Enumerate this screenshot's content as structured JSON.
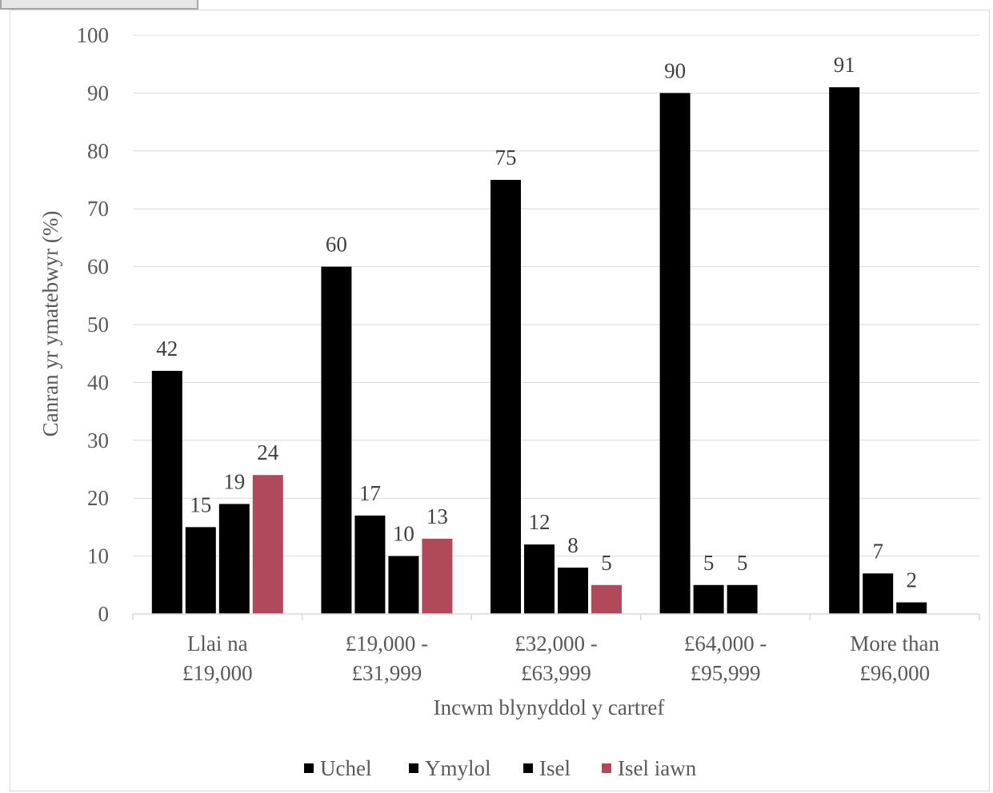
{
  "chart_data": {
    "type": "bar",
    "title": "",
    "xlabel": "Incwm blynyddol y cartref",
    "ylabel": "Canran yr   ymatebwyr  (%)",
    "ylim": [
      0,
      100
    ],
    "yticks": [
      0,
      10,
      20,
      30,
      40,
      50,
      60,
      70,
      80,
      90,
      100
    ],
    "grid": true,
    "legend_position": "bottom",
    "categories": [
      [
        "Llai na",
        "£19,000"
      ],
      [
        "£19,000 -",
        "£31,999"
      ],
      [
        "£32,000 -",
        "£63,999"
      ],
      [
        "£64,000 -",
        "£95,999"
      ],
      [
        "More than",
        "£96,000"
      ]
    ],
    "series": [
      {
        "name": "Uchel",
        "color": "#000000",
        "values": [
          42,
          60,
          75,
          90,
          91
        ]
      },
      {
        "name": "Ymylol",
        "color": "#000000",
        "values": [
          15,
          17,
          12,
          5,
          7
        ]
      },
      {
        "name": "Isel",
        "color": "#000000",
        "values": [
          19,
          10,
          8,
          5,
          2
        ]
      },
      {
        "name": "Isel iawn",
        "color": "#b04a5a",
        "values": [
          24,
          13,
          5,
          null,
          null
        ]
      }
    ]
  }
}
